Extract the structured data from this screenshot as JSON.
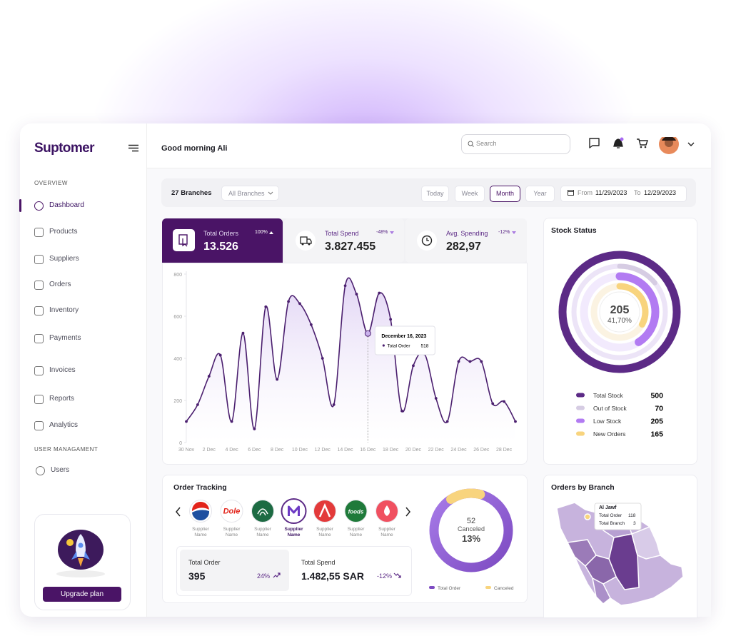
{
  "sidebar": {
    "logo": "Suptomer",
    "sections": [
      {
        "title": "OVERVIEW",
        "items": [
          "Dashboard",
          "Products",
          "Suppliers",
          "Orders",
          "Inventory",
          "Payments",
          "Invoices",
          "Reports",
          "Analytics"
        ]
      },
      {
        "title": "USER MANAGAMENT",
        "items": [
          "Users"
        ]
      }
    ],
    "upgrade_button": "Upgrade plan"
  },
  "header": {
    "greeting": "Good morning Ali",
    "search_placeholder": "Search"
  },
  "filters": {
    "branches": "27 Branches",
    "branch_select": "All Branches",
    "periods": [
      "Today",
      "Week",
      "Month",
      "Year"
    ],
    "active_period": "Month",
    "date_from_label": "From",
    "date_from": "11/29/2023",
    "date_to_label": "To",
    "date_to": "12/29/2023"
  },
  "kpis": [
    {
      "label": "Total Orders",
      "value": "13.526",
      "change": "100%"
    },
    {
      "label": "Total Spend",
      "value": "3.827.455",
      "change": "-48%"
    },
    {
      "label": "Avg. Spending",
      "value": "282,97",
      "change": "-12%"
    }
  ],
  "chart_data": [
    {
      "type": "line",
      "categories": [
        "30 Nov",
        null,
        "2 Dec",
        null,
        "4 Dec",
        null,
        "6 Dec",
        null,
        "8 Dec",
        null,
        "10 Dec",
        null,
        "12 Dec",
        null,
        "14 Dec",
        null,
        "16 Dec",
        null,
        "18 Dec",
        null,
        "20 Dec",
        null,
        "22 Dec",
        null,
        "24 Dec",
        null,
        "26 Dec",
        null,
        "28 Dec",
        null
      ],
      "series": [
        {
          "name": "Total Order",
          "color": "#4b1f6f",
          "values": [
            100,
            180,
            315,
            415,
            100,
            520,
            65,
            645,
            300,
            670,
            660,
            560,
            400,
            180,
            745,
            705,
            518,
            710,
            585,
            150,
            365,
            420,
            210,
            100,
            385,
            385,
            385,
            185,
            195,
            100
          ]
        }
      ],
      "ylim": [
        0,
        800
      ],
      "yticks": [
        0,
        200,
        400,
        600,
        800
      ],
      "tooltip_index": 16,
      "tooltip_title": "December 16, 2023"
    },
    {
      "type": "rings",
      "title": "Stock Status",
      "categories": [
        "Total Stock",
        "Out of Stock",
        "Low Stock",
        "New Orders"
      ],
      "values": [
        500,
        70,
        205,
        165
      ],
      "colors": [
        "#5c2a86",
        "#d6cce3",
        "#b27bf2",
        "#f8d47e"
      ],
      "center_label": "41,70%"
    },
    {
      "type": "donut",
      "title": "Order Tracking",
      "categories": [
        "Total Order",
        "Canceled"
      ],
      "values": [
        395,
        52
      ],
      "colors": [
        "#7d4bc2",
        "#f8d47e"
      ],
      "center_label": "13%"
    }
  ],
  "order_tracking": {
    "suppliers": [
      {
        "name": "Supplier Name"
      },
      {
        "name": "Supplier Name",
        "logo_text": "Dole"
      },
      {
        "name": "Supplier Name"
      },
      {
        "name": "Supplier Name",
        "selected": true
      },
      {
        "name": "Supplier Name"
      },
      {
        "name": "Supplier Name",
        "logo_text": "foods"
      },
      {
        "name": "Supplier Name"
      }
    ],
    "total_order_change": "24%",
    "total_spend_label": "Total Spend",
    "total_spend": "1.482,55 SAR",
    "total_spend_change": "-12%"
  },
  "orders_by_branch": {
    "title": "Orders by Branch",
    "tooltip": {
      "region": "Al Jawf",
      "rows": [
        {
          "label": "Total Order",
          "value": "118"
        },
        {
          "label": "Total Branch",
          "value": "3"
        }
      ]
    }
  }
}
